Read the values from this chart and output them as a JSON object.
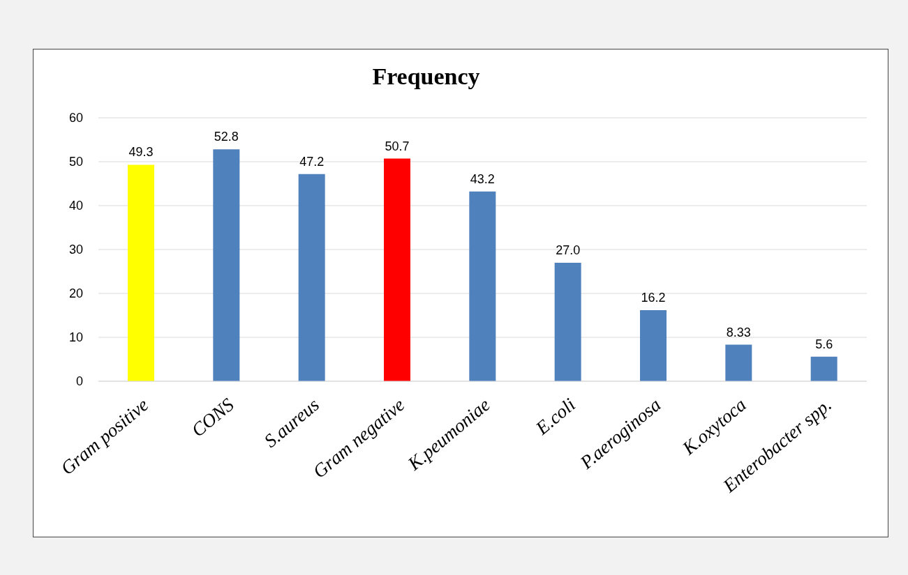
{
  "chart_data": {
    "type": "bar",
    "title": "Frequency",
    "categories": [
      "Gram positive",
      "CONS",
      "S.aureus",
      "Gram negative",
      "K.peumoniae",
      "E.coli",
      "P.aeroginosa",
      "K.oxytoca",
      "Enterobacter spp."
    ],
    "values": [
      49.3,
      52.8,
      47.2,
      50.7,
      43.2,
      27.0,
      16.2,
      8.33,
      5.6
    ],
    "value_labels": [
      "49.3",
      "52.8",
      "47.2",
      "50.7",
      "43.2",
      "27.0",
      "16.2",
      "8.33",
      "5.6"
    ],
    "colors": [
      "#ffff00",
      "#4f81bd",
      "#4f81bd",
      "#ff0000",
      "#4f81bd",
      "#4f81bd",
      "#4f81bd",
      "#4f81bd",
      "#4f81bd"
    ],
    "ylim": [
      0,
      60
    ],
    "yticks": [
      0,
      10,
      20,
      30,
      40,
      50,
      60
    ],
    "grid": "y"
  }
}
